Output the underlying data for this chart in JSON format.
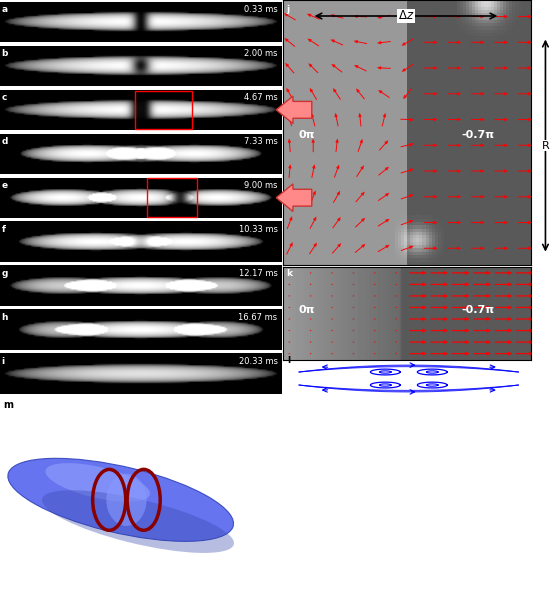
{
  "panel_labels_left": [
    "a",
    "b",
    "c",
    "d",
    "e",
    "f",
    "g",
    "h",
    "i"
  ],
  "timestamps": [
    "0.33 ms",
    "2.00 ms",
    "4.67 ms",
    "7.33 ms",
    "9.00 ms",
    "10.33 ms",
    "12.17 ms",
    "16.67 ms",
    "20.33 ms"
  ],
  "phase_left": "0π",
  "phase_right": "-0.7π",
  "bg_color": "#000000"
}
